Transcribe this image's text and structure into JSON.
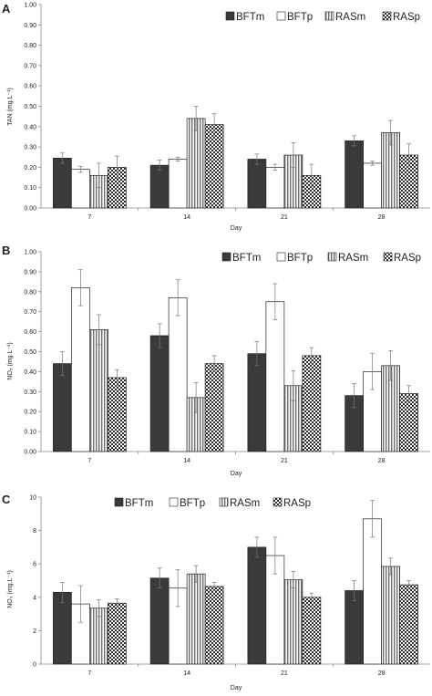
{
  "panel_letters": [
    "A",
    "B",
    "C"
  ],
  "series_styles": {
    "BFTm": "#3a3a3a",
    "BFTp": "#ffffff",
    "RASm": "vertical-stripes",
    "RASp": "checker"
  },
  "chart_data": [
    {
      "type": "bar",
      "panel": "A",
      "categories": [
        "7",
        "14",
        "21",
        "28"
      ],
      "xlabel": "Day",
      "ylabel": "TAN (mg.L⁻¹)",
      "ylim": [
        0,
        1.0
      ],
      "yticks": [
        "0.00",
        "0.10",
        "0.20",
        "0.30",
        "0.40",
        "0.50",
        "0.60",
        "0.70",
        "0.80",
        "0.90",
        "1.00"
      ],
      "legend_position": "top-right",
      "grid": false,
      "series": [
        {
          "name": "BFTm",
          "values": [
            0.245,
            0.21,
            0.24,
            0.33
          ],
          "errors": [
            0.025,
            0.025,
            0.025,
            0.025
          ]
        },
        {
          "name": "BFTp",
          "values": [
            0.19,
            0.24,
            0.2,
            0.22
          ],
          "errors": [
            0.015,
            0.01,
            0.015,
            0.01
          ]
        },
        {
          "name": "RASm",
          "values": [
            0.16,
            0.44,
            0.26,
            0.37
          ],
          "errors": [
            0.06,
            0.06,
            0.06,
            0.06
          ]
        },
        {
          "name": "RASp",
          "values": [
            0.2,
            0.41,
            0.16,
            0.26
          ],
          "errors": [
            0.055,
            0.055,
            0.055,
            0.055
          ]
        }
      ]
    },
    {
      "type": "bar",
      "panel": "B",
      "categories": [
        "7",
        "14",
        "21",
        "28"
      ],
      "xlabel": "Day",
      "ylabel": "NO₂ (mg.L⁻¹)",
      "ylim": [
        0,
        1.0
      ],
      "yticks": [
        "0.00",
        "0.10",
        "0.20",
        "0.30",
        "0.40",
        "0.50",
        "0.60",
        "0.70",
        "0.80",
        "0.90",
        "1.00"
      ],
      "legend_position": "top-right",
      "grid": false,
      "series": [
        {
          "name": "BFTm",
          "values": [
            0.44,
            0.58,
            0.49,
            0.28
          ],
          "errors": [
            0.06,
            0.06,
            0.06,
            0.06
          ]
        },
        {
          "name": "BFTp",
          "values": [
            0.82,
            0.77,
            0.75,
            0.4
          ],
          "errors": [
            0.09,
            0.09,
            0.09,
            0.09
          ]
        },
        {
          "name": "RASm",
          "values": [
            0.61,
            0.27,
            0.33,
            0.43
          ],
          "errors": [
            0.075,
            0.075,
            0.075,
            0.075
          ]
        },
        {
          "name": "RASp",
          "values": [
            0.37,
            0.44,
            0.48,
            0.29
          ],
          "errors": [
            0.04,
            0.04,
            0.04,
            0.04
          ]
        }
      ]
    },
    {
      "type": "bar",
      "panel": "C",
      "categories": [
        "7",
        "14",
        "21",
        "28"
      ],
      "xlabel": "Day",
      "ylabel": "NO₃ (mg.L⁻¹)",
      "ylim": [
        0,
        10
      ],
      "yticks": [
        "0",
        "2",
        "4",
        "6",
        "8",
        "10"
      ],
      "legend_position": "top-center",
      "grid": false,
      "series": [
        {
          "name": "BFTm",
          "values": [
            4.3,
            5.15,
            7.0,
            4.4
          ],
          "errors": [
            0.6,
            0.6,
            0.6,
            0.6
          ]
        },
        {
          "name": "BFTp",
          "values": [
            3.6,
            4.55,
            6.5,
            8.7
          ],
          "errors": [
            1.1,
            1.1,
            1.1,
            1.1
          ]
        },
        {
          "name": "RASm",
          "values": [
            3.35,
            5.4,
            5.05,
            5.85
          ],
          "errors": [
            0.5,
            0.5,
            0.5,
            0.5
          ]
        },
        {
          "name": "RASp",
          "values": [
            3.65,
            4.65,
            4.0,
            4.75
          ],
          "errors": [
            0.25,
            0.25,
            0.25,
            0.25
          ]
        }
      ]
    }
  ]
}
